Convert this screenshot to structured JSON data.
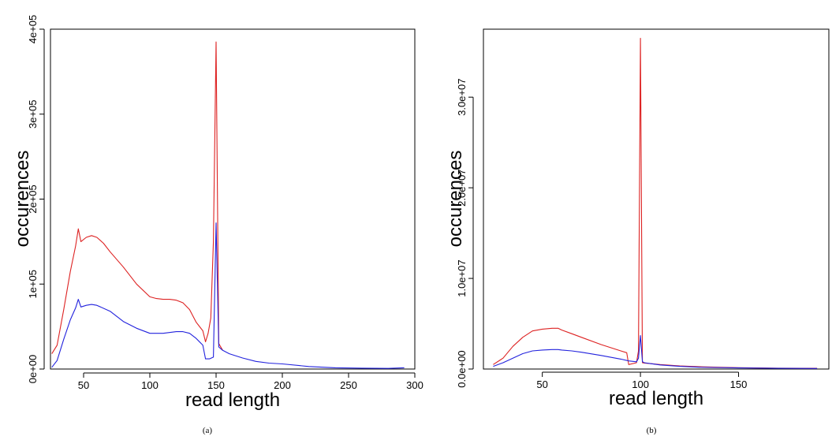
{
  "chart_data": [
    {
      "type": "line",
      "caption": "(a)",
      "xlabel": "read length",
      "ylabel": "occurences",
      "xlim": [
        25,
        300
      ],
      "ylim": [
        0,
        400000
      ],
      "xticks": [
        50,
        100,
        150,
        200,
        250,
        300
      ],
      "yticks": [
        0,
        100000,
        200000,
        300000,
        400000
      ],
      "ytick_labels": [
        "0e+00",
        "1e+05",
        "2e+05",
        "3e+05",
        "4e+05"
      ],
      "grid": false,
      "series": [
        {
          "color": "#dd2222",
          "x": [
            26,
            30,
            35,
            40,
            44,
            46,
            48,
            52,
            56,
            60,
            65,
            70,
            80,
            90,
            100,
            105,
            110,
            115,
            120,
            125,
            130,
            135,
            140,
            142,
            144,
            146,
            148,
            150,
            152,
            155
          ],
          "y": [
            18000,
            28000,
            70000,
            115000,
            145000,
            165000,
            150000,
            155000,
            157000,
            155000,
            148000,
            138000,
            120000,
            100000,
            85000,
            83000,
            82000,
            82000,
            81000,
            78000,
            70000,
            55000,
            45000,
            32000,
            42000,
            60000,
            150000,
            385000,
            30000,
            22000
          ]
        },
        {
          "color": "#2222dd",
          "x": [
            26,
            30,
            35,
            40,
            44,
            46,
            48,
            52,
            56,
            60,
            70,
            80,
            90,
            100,
            110,
            120,
            125,
            130,
            135,
            140,
            142,
            145,
            148,
            150,
            152,
            155,
            160,
            170,
            180,
            190,
            200,
            220,
            240,
            260,
            280,
            292
          ],
          "y": [
            2000,
            10000,
            35000,
            58000,
            72000,
            82000,
            73000,
            75000,
            76000,
            75000,
            68000,
            56000,
            48000,
            42000,
            42000,
            44000,
            44000,
            42000,
            36000,
            28000,
            12000,
            12000,
            14000,
            172000,
            26000,
            22000,
            18000,
            13000,
            9000,
            7000,
            6000,
            3000,
            1500,
            1000,
            700,
            1500
          ]
        }
      ]
    },
    {
      "type": "line",
      "caption": "(b)",
      "xlabel": "read length",
      "ylabel": "occurences",
      "xlim": [
        20,
        196
      ],
      "ylim": [
        0,
        37500000
      ],
      "xticks": [
        50,
        100,
        150
      ],
      "yticks": [
        0,
        10000000,
        20000000,
        30000000
      ],
      "ytick_labels": [
        "0.0e+00",
        "1.0e+07",
        "2.0e+07",
        "3.0e+07"
      ],
      "grid": false,
      "series": [
        {
          "color": "#dd2222",
          "x": [
            25,
            30,
            35,
            40,
            45,
            50,
            55,
            58,
            60,
            65,
            70,
            80,
            90,
            93,
            94,
            98,
            99,
            100,
            101,
            102,
            105,
            110,
            120,
            130,
            150,
            170,
            190
          ],
          "y": [
            500000,
            1200000,
            2500000,
            3500000,
            4200000,
            4400000,
            4500000,
            4500000,
            4300000,
            3900000,
            3500000,
            2700000,
            2000000,
            1800000,
            500000,
            700000,
            2000000,
            36500000,
            700000,
            650000,
            600000,
            500000,
            350000,
            250000,
            150000,
            100000,
            80000
          ]
        },
        {
          "color": "#2222dd",
          "x": [
            25,
            30,
            35,
            40,
            45,
            50,
            55,
            58,
            60,
            65,
            70,
            80,
            90,
            94,
            98,
            99,
            100,
            101,
            102,
            105,
            110,
            120,
            130,
            150,
            170,
            190
          ],
          "y": [
            300000,
            700000,
            1200000,
            1700000,
            2000000,
            2100000,
            2150000,
            2150000,
            2100000,
            2000000,
            1850000,
            1500000,
            1100000,
            900000,
            800000,
            1200000,
            3700000,
            800000,
            700000,
            600000,
            450000,
            300000,
            200000,
            120000,
            80000,
            60000
          ]
        }
      ]
    }
  ]
}
